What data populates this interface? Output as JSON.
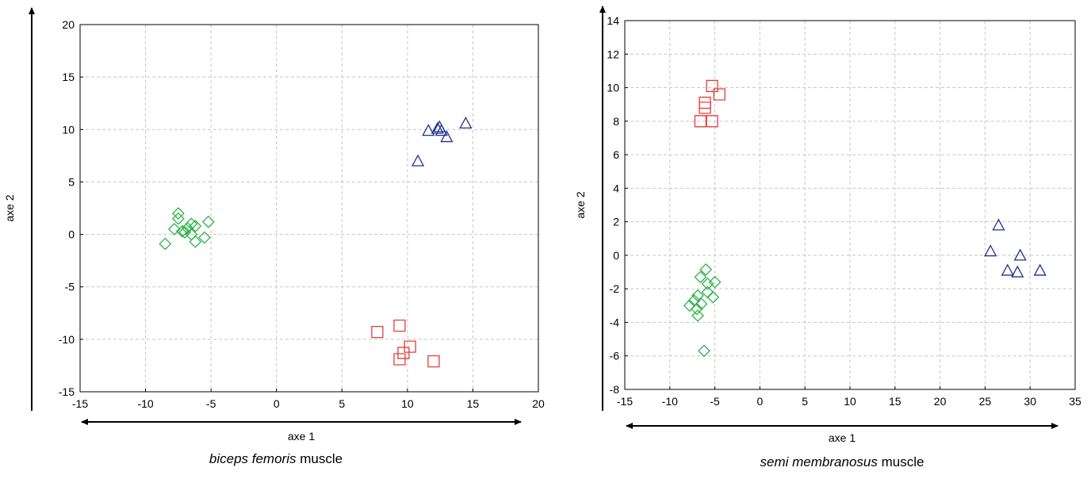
{
  "chart_data": [
    {
      "type": "scatter",
      "title": [
        "biceps femoris",
        "muscle"
      ],
      "x_label": "axe 1",
      "y_label": "axe 2",
      "xlim": [
        -15,
        20
      ],
      "ylim": [
        -15,
        20
      ],
      "xticks": [
        -15,
        -10,
        -5,
        0,
        5,
        10,
        15,
        20
      ],
      "yticks": [
        -15,
        -10,
        -5,
        0,
        5,
        10,
        15,
        20
      ],
      "grid": true,
      "series": [
        {
          "color": "#2fb34a",
          "marker": "diamond",
          "x": [
            -7.5,
            -7.5,
            -7.8,
            -7.0,
            -6.5,
            -6.2,
            -6.8,
            -6.5,
            -6.2,
            -5.5,
            -5.2,
            -8.5,
            -7.2
          ],
          "y": [
            2.0,
            1.5,
            0.5,
            0.2,
            1.0,
            0.8,
            0.6,
            0.0,
            -0.7,
            -0.3,
            1.2,
            -0.9,
            0.3
          ]
        },
        {
          "color": "#1f2f8f",
          "marker": "triangle",
          "x": [
            11.6,
            12.45,
            12.6,
            13.0,
            10.8,
            14.45,
            12.3
          ],
          "y": [
            9.9,
            10.25,
            9.9,
            9.3,
            7.0,
            10.6,
            10.1
          ]
        },
        {
          "color": "#e0403a",
          "marker": "square",
          "x": [
            7.7,
            9.4,
            9.7,
            10.2,
            9.4,
            12.0
          ],
          "y": [
            -9.3,
            -8.7,
            -11.3,
            -10.7,
            -11.9,
            -12.1
          ]
        }
      ]
    },
    {
      "type": "scatter",
      "title": [
        "semi membranosus",
        "muscle"
      ],
      "x_label": "axe 1",
      "y_label": "axe 2",
      "xlim": [
        -15,
        35
      ],
      "ylim": [
        -8,
        14
      ],
      "xticks": [
        -15,
        -10,
        -5,
        0,
        5,
        10,
        15,
        20,
        25,
        30,
        35
      ],
      "yticks": [
        -8,
        -6,
        -4,
        -2,
        0,
        2,
        4,
        6,
        8,
        10,
        12,
        14
      ],
      "grid": true,
      "series": [
        {
          "color": "#2fb34a",
          "marker": "diamond",
          "x": [
            -6.0,
            -6.6,
            -5.0,
            -5.8,
            -6.9,
            -5.8,
            -5.2,
            -7.3,
            -6.5,
            -7.0,
            -6.9,
            -6.2,
            -7.8
          ],
          "y": [
            -0.85,
            -1.3,
            -1.6,
            -1.7,
            -2.4,
            -2.2,
            -2.5,
            -2.7,
            -2.9,
            -3.2,
            -3.6,
            -5.7,
            -3.0
          ]
        },
        {
          "color": "#1f2f8f",
          "marker": "triangle",
          "x": [
            26.5,
            25.6,
            28.9,
            27.5,
            28.6,
            31.1
          ],
          "y": [
            1.8,
            0.25,
            0.0,
            -0.9,
            -1.0,
            -0.9
          ]
        },
        {
          "color": "#e0403a",
          "marker": "square",
          "x": [
            -5.3,
            -4.5,
            -6.1,
            -6.1,
            -6.6,
            -5.3
          ],
          "y": [
            10.1,
            9.6,
            9.1,
            8.8,
            8.0,
            8.0
          ]
        }
      ]
    }
  ]
}
